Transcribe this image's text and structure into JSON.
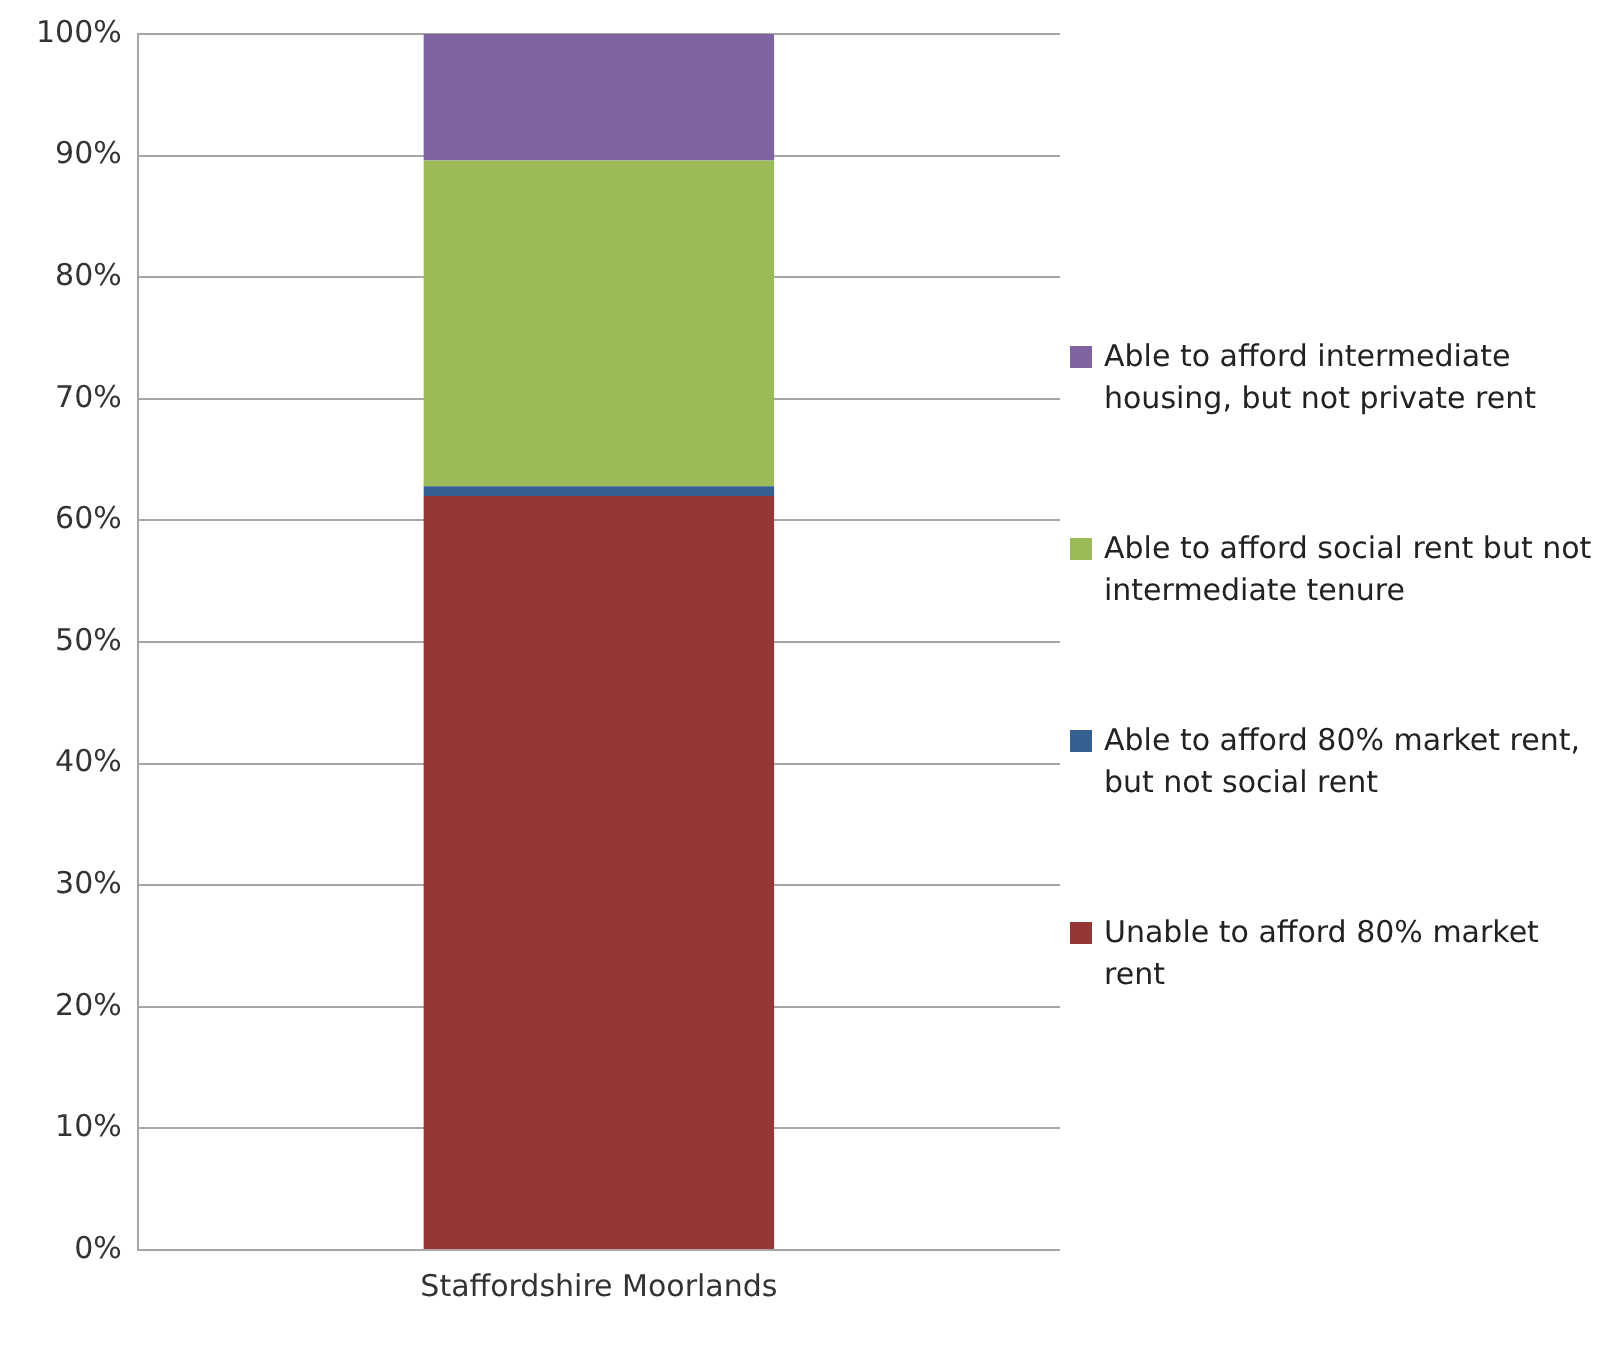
{
  "chart_data": {
    "type": "bar",
    "stacked": true,
    "categories": [
      "Staffordshire Moorlands"
    ],
    "series": [
      {
        "name": "Unable to afford 80% market rent",
        "color": "#953735",
        "values": [
          62
        ]
      },
      {
        "name": "Able to afford 80% market rent, but not social rent",
        "color": "#376092",
        "values": [
          0.8
        ]
      },
      {
        "name": "Able to afford social rent but not intermediate tenure",
        "color": "#9bbb59",
        "values": [
          26.8
        ]
      },
      {
        "name": "Able to afford intermediate housing, but not private rent",
        "color": "#8064a2",
        "values": [
          10.4
        ]
      }
    ],
    "ylim": [
      0,
      100
    ],
    "yticks": [
      {
        "value": 0,
        "label": "0%"
      },
      {
        "value": 10,
        "label": "10%"
      },
      {
        "value": 20,
        "label": "20%"
      },
      {
        "value": 30,
        "label": "30%"
      },
      {
        "value": 40,
        "label": "40%"
      },
      {
        "value": 50,
        "label": "50%"
      },
      {
        "value": 60,
        "label": "60%"
      },
      {
        "value": 70,
        "label": "70%"
      },
      {
        "value": 80,
        "label": "80%"
      },
      {
        "value": 90,
        "label": "90%"
      },
      {
        "value": 100,
        "label": "100%"
      }
    ],
    "grid": "y",
    "legend": "right"
  }
}
